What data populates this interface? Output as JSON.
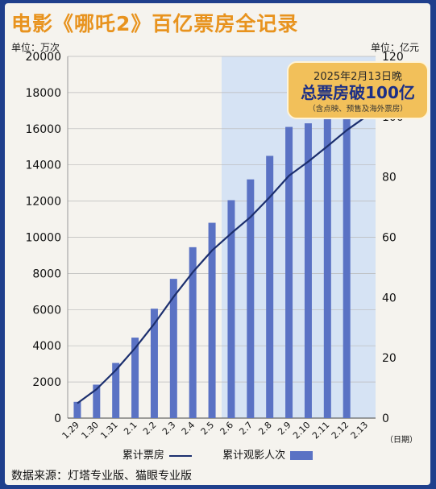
{
  "title": "电影《哪吒2》百亿票房全记录",
  "unit_left": "单位：万次",
  "unit_right": "单位：亿元",
  "callout": {
    "date": "2025年2月13日晚",
    "main": "总票房破100亿",
    "sub": "（含点映、预售及海外票房）"
  },
  "legend": {
    "line": "累计票房",
    "bars": "累计观影人次"
  },
  "source": "数据来源：灯塔专业版、猫眼专业版",
  "x_axis_unit": "（日期）",
  "colors": {
    "title": "#e8931e",
    "bar": "#5a72c4",
    "line": "#1c2f6e",
    "highlight": "#d6e3f4"
  },
  "chart_data": {
    "type": "bar",
    "categories": [
      "1.29",
      "1.30",
      "1.31",
      "2.1",
      "2.2",
      "2.3",
      "2.4",
      "2.5",
      "2.6",
      "2.7",
      "2.8",
      "2.9",
      "2.10",
      "2.11",
      "2.12",
      "2.13"
    ],
    "series": [
      {
        "name": "累计观影人次",
        "type": "bar",
        "axis": "left",
        "values": [
          900,
          1850,
          3050,
          4450,
          6050,
          7700,
          9450,
          10800,
          12050,
          13200,
          14500,
          16100,
          16300,
          16950,
          17100,
          null
        ]
      },
      {
        "name": "累计票房",
        "type": "line",
        "axis": "right",
        "values": [
          4.9,
          9.6,
          15.9,
          23.2,
          31.3,
          40.2,
          48.4,
          55.6,
          61.3,
          66.7,
          73.3,
          80.4,
          85.1,
          90.2,
          95.5,
          100
        ]
      }
    ],
    "y_left": {
      "ticks": [
        0,
        2000,
        4000,
        6000,
        8000,
        10000,
        12000,
        14000,
        16000,
        18000,
        20000
      ],
      "range": [
        0,
        20000
      ]
    },
    "y_right": {
      "ticks": [
        0,
        20,
        40,
        60,
        80,
        100,
        120
      ],
      "range": [
        0,
        120
      ]
    },
    "highlight_range": [
      "2.6",
      "2.13"
    ]
  }
}
